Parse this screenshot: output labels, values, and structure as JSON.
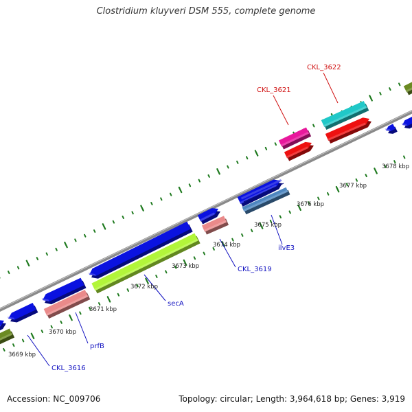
{
  "title": "Clostridium kluyveri DSM 555, complete genome",
  "footer": {
    "accession": "Accession: NC_009706",
    "topology": "Topology: circular; Length: 3,964,618 bp; Genes: 3,919"
  },
  "colors": {
    "backbone": "#8a8a8a",
    "tick": "#1f7a1f",
    "cds_blue": "#0a12e0",
    "rna_pink": "#ea8a8a",
    "rna_light_green": "#b2f53a",
    "cds_magenta": "#e8189c",
    "cds_red": "#ee1111",
    "cds_cyan": "#20c8c8",
    "cds_steel": "#4d86c0",
    "cds_olive": "#6b8a22",
    "label_blue": "#1010c0",
    "label_red": "#d01010"
  },
  "kbp_labels": [
    "3669 kbp",
    "3670 kbp",
    "3671 kbp",
    "3672 kbp",
    "3673 kbp",
    "3674 kbp",
    "3675 kbp",
    "3676 kbp",
    "3677 kbp",
    "3678 kbp"
  ],
  "gene_labels": [
    {
      "name": "CKL_3616",
      "color": "label_blue"
    },
    {
      "name": "prfB",
      "color": "label_blue"
    },
    {
      "name": "secA",
      "color": "label_blue"
    },
    {
      "name": "CKL_3619",
      "color": "label_blue"
    },
    {
      "name": "ilvE3",
      "color": "label_blue"
    },
    {
      "name": "CKL_3621",
      "color": "label_red"
    },
    {
      "name": "CKL_3622",
      "color": "label_red"
    }
  ]
}
